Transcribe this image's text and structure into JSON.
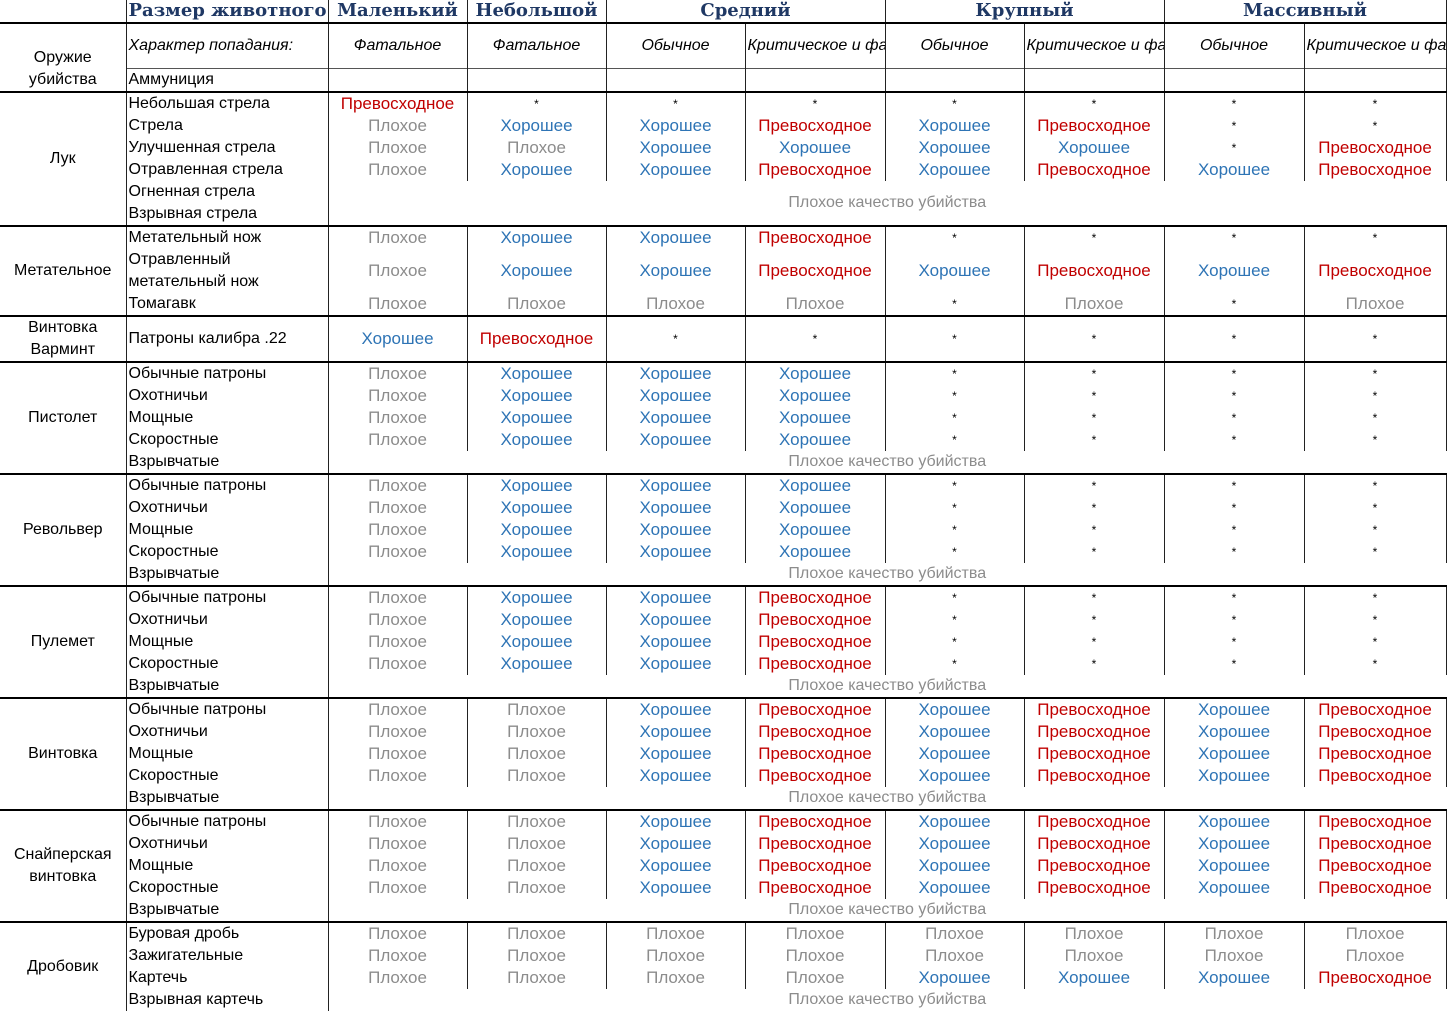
{
  "colors": {
    "poor": "#8c8c8c",
    "good": "#2e74b5",
    "excellent": "#c00000",
    "header_text": "#1f3864"
  },
  "header": {
    "size_label": "Размер животного:",
    "sizes": [
      "Маленький",
      "Небольшой",
      "Средний",
      "Крупный",
      "Массивный"
    ],
    "weapon_label": "Оружие убийства",
    "hit_label": "Характер попадания:",
    "hits": [
      "Фатальное",
      "Фатальное",
      "Обычное",
      "Критическое и фатальное",
      "Обычное",
      "Критическое и фатальное",
      "Обычное",
      "Критическое и фатальное"
    ],
    "ammo_label": "Аммуниция"
  },
  "legend": {
    "P": "Плохое",
    "G": "Хорошее",
    "E": "Превосходное",
    "S": "*"
  },
  "span_text": "Плохое качество убийства",
  "groups": [
    {
      "weapon": "Лук",
      "rows": [
        {
          "ammo": "Небольшая стрела",
          "cells": "ESSSSSSS"
        },
        {
          "ammo": "Стрела",
          "cells": "PGGEGESS"
        },
        {
          "ammo": "Улучшенная стрела",
          "cells": "PPGGGGSE"
        },
        {
          "ammo": "Отравленная стрела",
          "cells": "PGGEGEGE"
        },
        {
          "ammo": "Огненная стрела",
          "cells": ""
        },
        {
          "ammo": "Взрывная стрела",
          "cells": ""
        }
      ],
      "span": {
        "start": 4,
        "len": 2
      }
    },
    {
      "weapon": "Метательное",
      "rows": [
        {
          "ammo": "Метательный нож",
          "cells": "PGGESSSS"
        },
        {
          "ammo": "Отравленный метательный нож",
          "cells": "PGGEGEGE",
          "tall": true
        },
        {
          "ammo": "Томагавк",
          "cells": "PPPPSPSP"
        }
      ]
    },
    {
      "weapon": "Винтовка Варминт",
      "rows": [
        {
          "ammo": "Патроны калибра .22",
          "cells": "GESSSSSS",
          "tall": true
        }
      ]
    },
    {
      "weapon": "Пистолет",
      "rows": [
        {
          "ammo": "Обычные патроны",
          "cells": "PGGGSSSS"
        },
        {
          "ammo": "Охотничьи",
          "cells": "PGGGSSSS"
        },
        {
          "ammo": "Мощные",
          "cells": "PGGGSSSS"
        },
        {
          "ammo": "Скоростные",
          "cells": "PGGGSSSS"
        },
        {
          "ammo": "Взрывчатые",
          "cells": ""
        }
      ],
      "span": {
        "start": 4,
        "len": 1
      }
    },
    {
      "weapon": "Револьвер",
      "rows": [
        {
          "ammo": "Обычные патроны",
          "cells": "PGGGSSSS"
        },
        {
          "ammo": "Охотничьи",
          "cells": "PGGGSSSS"
        },
        {
          "ammo": "Мощные",
          "cells": "PGGGSSSS"
        },
        {
          "ammo": "Скоростные",
          "cells": "PGGGSSSS"
        },
        {
          "ammo": "Взрывчатые",
          "cells": ""
        }
      ],
      "span": {
        "start": 4,
        "len": 1
      }
    },
    {
      "weapon": "Пулемет",
      "rows": [
        {
          "ammo": "Обычные патроны",
          "cells": "PGGESSSS"
        },
        {
          "ammo": "Охотничьи",
          "cells": "PGGESSSS"
        },
        {
          "ammo": "Мощные",
          "cells": "PGGESSSS"
        },
        {
          "ammo": "Скоростные",
          "cells": "PGGESSSS"
        },
        {
          "ammo": "Взрывчатые",
          "cells": ""
        }
      ],
      "span": {
        "start": 4,
        "len": 1
      }
    },
    {
      "weapon": "Винтовка",
      "rows": [
        {
          "ammo": "Обычные патроны",
          "cells": "PPGEGEGE"
        },
        {
          "ammo": "Охотничьи",
          "cells": "PPGEGEGE"
        },
        {
          "ammo": "Мощные",
          "cells": "PPGEGEGE"
        },
        {
          "ammo": "Скоростные",
          "cells": "PPGEGEGE"
        },
        {
          "ammo": "Взрывчатые",
          "cells": ""
        }
      ],
      "span": {
        "start": 4,
        "len": 1
      }
    },
    {
      "weapon": "Снайперская винтовка",
      "rows": [
        {
          "ammo": "Обычные патроны",
          "cells": "PPGEGEGE"
        },
        {
          "ammo": "Охотничьи",
          "cells": "PPGEGEGE"
        },
        {
          "ammo": "Мощные",
          "cells": "PPGEGEGE"
        },
        {
          "ammo": "Скоростные",
          "cells": "PPGEGEGE"
        },
        {
          "ammo": "Взрывчатые",
          "cells": ""
        }
      ],
      "span": {
        "start": 4,
        "len": 1
      }
    },
    {
      "weapon": "Дробовик",
      "rows": [
        {
          "ammo": "Буровая дробь",
          "cells": "PPPPPPPP"
        },
        {
          "ammo": "Зажигательные",
          "cells": "PPPPPPPP"
        },
        {
          "ammo": "Картечь",
          "cells": "PPPPGGGE"
        },
        {
          "ammo": "Взрывная картечь",
          "cells": ""
        }
      ],
      "span": {
        "start": 3,
        "len": 1
      }
    }
  ]
}
